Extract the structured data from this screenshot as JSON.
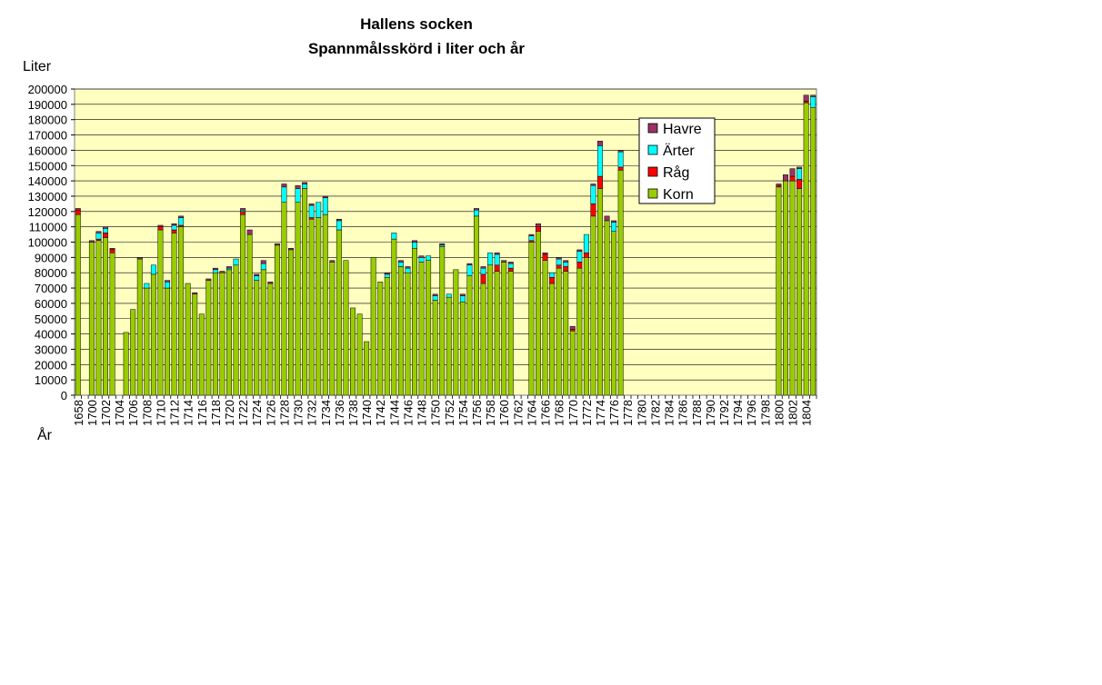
{
  "chart_data": {
    "type": "bar",
    "stacked": true,
    "title": "Hallens socken",
    "subtitle": "Spannmålsskörd i liter och år",
    "ylabel": "Liter",
    "xlabel": "År",
    "ylim": [
      0,
      200000
    ],
    "ytick_step": 10000,
    "grid": true,
    "legend_position": "right",
    "x_first": 1658,
    "x_labels": [
      "1658",
      "1700",
      "1702",
      "1704",
      "1706",
      "1708",
      "1710",
      "1712",
      "1714",
      "1716",
      "1718",
      "1720",
      "1722",
      "1724",
      "1726",
      "1728",
      "1730",
      "1732",
      "1734",
      "1736",
      "1738",
      "1740",
      "1742",
      "1744",
      "1746",
      "1748",
      "1750",
      "1752",
      "1754",
      "1756",
      "1758",
      "1760",
      "1762",
      "1764",
      "1766",
      "1768",
      "1770",
      "1772",
      "1774",
      "1776",
      "1778",
      "1780",
      "1782",
      "1784",
      "1786",
      "1788",
      "1790",
      "1792",
      "1794",
      "1796",
      "1798",
      "1800",
      "1802",
      "1804"
    ],
    "colors": {
      "plot_bg": "#FFFFC0",
      "Korn": "#99CC00",
      "Råg": "#FF0000",
      "Ärter": "#00FFFF",
      "Havre": "#993366"
    },
    "legend": [
      "Havre",
      "Ärter",
      "Råg",
      "Korn"
    ],
    "x": [
      "1658",
      "1700",
      "1701",
      "1702",
      "1703",
      "1704",
      "1705",
      "1706",
      "1707",
      "1708",
      "1709",
      "1710",
      "1711",
      "1712",
      "1713",
      "1714",
      "1715",
      "1716",
      "1717",
      "1718",
      "1719",
      "1720",
      "1721",
      "1722",
      "1723",
      "1724",
      "1725",
      "1726",
      "1727",
      "1728",
      "1729",
      "1730",
      "1731",
      "1732",
      "1733",
      "1734",
      "1735",
      "1736",
      "1737",
      "1738",
      "1739",
      "1740",
      "1741",
      "1742",
      "1743",
      "1744",
      "1745",
      "1746",
      "1747",
      "1748",
      "1749",
      "1750",
      "1751",
      "1752",
      "1753",
      "1754",
      "1755",
      "1756",
      "1757",
      "1758",
      "1759",
      "1760",
      "1761",
      "1762",
      "1763",
      "1764",
      "1765",
      "1766",
      "1767",
      "1768",
      "1769",
      "1770",
      "1771",
      "1772",
      "1773",
      "1774",
      "1775",
      "1776",
      "1777",
      "1778",
      "1779",
      "1780",
      "1781",
      "1782",
      "1783",
      "1784",
      "1785",
      "1786",
      "1787",
      "1788",
      "1789",
      "1790",
      "1791",
      "1792",
      "1793",
      "1794",
      "1795",
      "1796",
      "1797",
      "1798",
      "1799",
      "1800",
      "1801",
      "1802",
      "1803",
      "1804",
      "1805"
    ],
    "series": [
      {
        "name": "Korn",
        "values": [
          118000,
          100000,
          101000,
          103000,
          93000,
          0,
          41000,
          56000,
          89000,
          70000,
          79000,
          108000,
          70000,
          106000,
          110000,
          73000,
          66000,
          53000,
          75000,
          80000,
          80000,
          82000,
          85000,
          118000,
          105000,
          75000,
          82000,
          73000,
          98000,
          126000,
          95000,
          126000,
          135000,
          115000,
          116000,
          118000,
          87000,
          108000,
          88000,
          57000,
          53000,
          35000,
          90000,
          74000,
          77000,
          102000,
          84000,
          80000,
          96000,
          87000,
          88000,
          62000,
          97000,
          64000,
          82000,
          61000,
          78000,
          117000,
          73000,
          85000,
          81000,
          87000,
          81000,
          0,
          0,
          100000,
          107000,
          88000,
          73000,
          83000,
          81000,
          42000,
          83000,
          90000,
          117000,
          135000,
          114000,
          107000,
          147000,
          0,
          0,
          0,
          0,
          0,
          0,
          0,
          0,
          0,
          0,
          0,
          0,
          0,
          0,
          0,
          0,
          0,
          0,
          0,
          0,
          0,
          0,
          136000,
          140000,
          140000,
          135000,
          191000,
          188000
        ]
      },
      {
        "name": "Råg",
        "values": [
          3000,
          0,
          1000,
          3000,
          2000,
          0,
          0,
          0,
          0,
          0,
          0,
          2000,
          0,
          2000,
          1000,
          0,
          0,
          0,
          0,
          0,
          0,
          0,
          0,
          2000,
          0,
          0,
          0,
          0,
          0,
          0,
          0,
          0,
          0,
          1000,
          0,
          0,
          0,
          0,
          0,
          0,
          0,
          0,
          0,
          0,
          0,
          0,
          0,
          0,
          0,
          0,
          0,
          0,
          0,
          0,
          0,
          0,
          0,
          0,
          6000,
          0,
          4000,
          0,
          2000,
          0,
          0,
          1000,
          3000,
          4000,
          4000,
          2000,
          3000,
          1000,
          4000,
          3000,
          8000,
          8000,
          0,
          0,
          2000,
          0,
          0,
          0,
          0,
          0,
          0,
          0,
          0,
          0,
          0,
          0,
          0,
          0,
          0,
          0,
          0,
          0,
          0,
          0,
          0,
          0,
          0,
          1000,
          0,
          3000,
          6000,
          1000,
          0
        ]
      },
      {
        "name": "Ärter",
        "values": [
          0,
          0,
          4000,
          3000,
          0,
          0,
          0,
          0,
          0,
          3000,
          6000,
          0,
          4000,
          3000,
          5000,
          0,
          0,
          0,
          0,
          2000,
          0,
          1000,
          4000,
          1000,
          0,
          3000,
          4000,
          0,
          0,
          10000,
          0,
          9000,
          3000,
          8000,
          10000,
          11000,
          0,
          6000,
          0,
          0,
          0,
          0,
          0,
          0,
          2000,
          4000,
          3000,
          3000,
          4000,
          3000,
          3000,
          3000,
          1000,
          2000,
          0,
          4000,
          7000,
          4000,
          4000,
          8000,
          7000,
          0,
          3000,
          0,
          0,
          3000,
          0,
          0,
          3000,
          4000,
          3000,
          0,
          7000,
          12000,
          12000,
          20000,
          0,
          6000,
          10000,
          0,
          0,
          0,
          0,
          0,
          0,
          0,
          0,
          0,
          0,
          0,
          0,
          0,
          0,
          0,
          0,
          0,
          0,
          0,
          0,
          0,
          0,
          0,
          0,
          0,
          7000,
          0,
          7000
        ]
      },
      {
        "name": "Havre",
        "values": [
          1000,
          1000,
          1000,
          1000,
          1000,
          0,
          0,
          0,
          1000,
          0,
          0,
          1000,
          1000,
          1000,
          1000,
          0,
          1000,
          0,
          1000,
          1000,
          1000,
          1000,
          0,
          1000,
          3000,
          1000,
          2000,
          1000,
          1000,
          2000,
          1000,
          2000,
          1000,
          1000,
          0,
          1000,
          1000,
          1000,
          0,
          0,
          0,
          0,
          0,
          0,
          1000,
          0,
          1000,
          1000,
          1000,
          1000,
          0,
          1000,
          1000,
          0,
          0,
          1000,
          1000,
          1000,
          1000,
          0,
          1000,
          1000,
          1000,
          0,
          0,
          1000,
          2000,
          1000,
          0,
          1000,
          1000,
          2000,
          1000,
          0,
          1000,
          3000,
          3000,
          1000,
          1000,
          0,
          0,
          0,
          0,
          0,
          0,
          0,
          0,
          0,
          0,
          0,
          0,
          0,
          0,
          0,
          0,
          0,
          0,
          0,
          0,
          0,
          0,
          1000,
          4000,
          5000,
          1000,
          4000,
          1000
        ]
      }
    ]
  }
}
